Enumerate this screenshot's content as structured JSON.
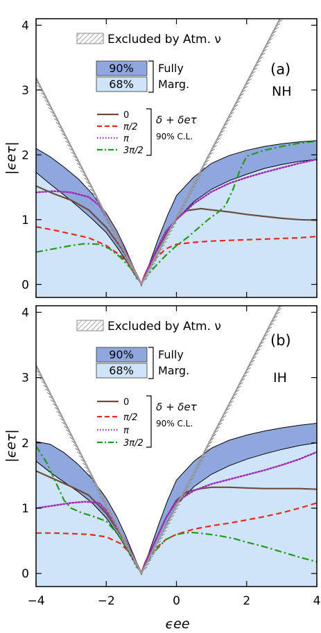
{
  "colors": {
    "band90": "#8fa7dc",
    "band68": "#cfe4f8",
    "excluded": "#9a9a9a",
    "delta_0": "#6b4c3d",
    "delta_pi2": "#e8281e",
    "delta_pi": "#a12cb6",
    "delta_3pi2": "#1f9a1f"
  },
  "shared": {
    "xlabel": "ϵee",
    "ylabel": "|ϵeτ|",
    "x_ticks": [
      "−4",
      "−2",
      "0",
      "2",
      "4"
    ],
    "y_ticks": [
      "0",
      "1",
      "2",
      "3",
      "4"
    ],
    "legend": {
      "excluded": "Excluded by Atm. ν",
      "pct90": "90%",
      "pct68": "68%",
      "fully": "Fully",
      "marg": "Marg.",
      "delta_0": "0",
      "delta_pi2": "π/2",
      "delta_pi": "π",
      "delta_3pi2": "3π/2",
      "delta_title": "δ + δeτ",
      "cl": "90% C.L."
    }
  },
  "chart_data": [
    {
      "type": "line",
      "panel": "(a)",
      "hierarchy": "NH",
      "xlim": [
        -4,
        4
      ],
      "ylim": [
        -0.2,
        4.1
      ],
      "excluded_lines": [
        {
          "name": "left",
          "x": [
            -1,
            -4.2
          ],
          "y": [
            0,
            3.4
          ]
        },
        {
          "name": "right",
          "x": [
            -1,
            2.95
          ],
          "y": [
            0,
            4.1
          ]
        }
      ],
      "band_68": {
        "x": [
          -4,
          -3.6,
          -3.2,
          -2.8,
          -2.4,
          -2.0,
          -1.7,
          -1.45,
          -1.25,
          -1.1,
          -1.0,
          -0.9,
          -0.75,
          -0.5,
          -0.25,
          0,
          0.5,
          1.0,
          1.5,
          2.0,
          2.5,
          3.0,
          3.5,
          4.0
        ],
        "y": [
          1.73,
          1.55,
          1.38,
          1.2,
          1.01,
          0.8,
          0.58,
          0.38,
          0.2,
          0.08,
          0.0,
          0.1,
          0.25,
          0.5,
          0.78,
          1.0,
          1.28,
          1.47,
          1.6,
          1.7,
          1.79,
          1.85,
          1.9,
          1.93
        ]
      },
      "band_90": {
        "x": [
          -4,
          -3.6,
          -3.2,
          -2.8,
          -2.4,
          -2.0,
          -1.7,
          -1.45,
          -1.25,
          -1.1,
          -1.0,
          -0.9,
          -0.75,
          -0.5,
          -0.25,
          0,
          0.5,
          1.0,
          1.5,
          2.0,
          2.5,
          3.0,
          3.5,
          4.0
        ],
        "y": [
          2.1,
          1.97,
          1.81,
          1.63,
          1.4,
          1.1,
          0.83,
          0.55,
          0.3,
          0.12,
          0.0,
          0.13,
          0.35,
          0.73,
          1.07,
          1.37,
          1.66,
          1.87,
          1.99,
          2.07,
          2.13,
          2.17,
          2.2,
          2.22
        ]
      },
      "series": [
        {
          "key": "delta_0",
          "dash": "solid",
          "x": [
            -4,
            -3.5,
            -3.0,
            -2.5,
            -2.0,
            -1.6,
            -1.3,
            -1.1,
            -1.0,
            -0.9,
            -0.6,
            -0.3,
            0,
            0.3,
            0.7,
            1.0,
            1.5,
            2.0,
            2.5,
            3.0,
            3.5,
            4.0
          ],
          "y": [
            1.52,
            1.4,
            1.3,
            1.15,
            0.88,
            0.58,
            0.32,
            0.12,
            0.0,
            0.15,
            0.48,
            0.78,
            1.02,
            1.14,
            1.17,
            1.15,
            1.12,
            1.08,
            1.05,
            1.02,
            1.0,
            0.99
          ]
        },
        {
          "key": "delta_pi2",
          "dash": "dashed",
          "x": [
            -4,
            -3.5,
            -3.0,
            -2.5,
            -2.0,
            -1.6,
            -1.3,
            -1.1,
            -1.0,
            -0.9,
            -0.6,
            -0.3,
            0,
            0.5,
            1.0,
            1.5,
            2.0,
            2.5,
            3.0,
            3.5,
            4.0
          ],
          "y": [
            0.89,
            0.84,
            0.78,
            0.72,
            0.6,
            0.45,
            0.28,
            0.12,
            0.0,
            0.15,
            0.4,
            0.55,
            0.62,
            0.65,
            0.67,
            0.68,
            0.69,
            0.7,
            0.71,
            0.72,
            0.74
          ]
        },
        {
          "key": "delta_pi",
          "dash": "dotted",
          "x": [
            -4,
            -3.5,
            -3.0,
            -2.5,
            -2.2,
            -2.0,
            -1.7,
            -1.4,
            -1.2,
            -1.05,
            -1.0,
            -0.9,
            -0.6,
            -0.3,
            0,
            0.5,
            1.0,
            1.5,
            2.0,
            2.5,
            3.0,
            3.5,
            4.0
          ],
          "y": [
            1.42,
            1.44,
            1.42,
            1.35,
            1.22,
            1.05,
            0.75,
            0.45,
            0.22,
            0.06,
            0.0,
            0.15,
            0.5,
            0.82,
            1.0,
            1.25,
            1.43,
            1.56,
            1.65,
            1.73,
            1.8,
            1.87,
            1.93
          ]
        },
        {
          "key": "delta_3pi2",
          "dash": "dashdot",
          "x": [
            -4,
            -3.5,
            -3.0,
            -2.6,
            -2.2,
            -1.9,
            -1.6,
            -1.3,
            -1.1,
            -1.0,
            -0.9,
            -0.6,
            -0.3,
            0,
            0.3,
            0.6,
            0.9,
            1.2,
            1.4,
            1.6,
            1.8,
            2.0,
            2.5,
            3.0,
            3.5,
            4.0
          ],
          "y": [
            0.5,
            0.55,
            0.6,
            0.63,
            0.62,
            0.55,
            0.42,
            0.25,
            0.1,
            0.0,
            0.1,
            0.28,
            0.45,
            0.6,
            0.72,
            0.86,
            1.0,
            1.12,
            1.22,
            1.45,
            1.75,
            1.98,
            2.07,
            2.13,
            2.18,
            2.21
          ]
        }
      ]
    },
    {
      "type": "line",
      "panel": "(b)",
      "hierarchy": "IH",
      "xlim": [
        -4,
        4
      ],
      "ylim": [
        -0.2,
        4.1
      ],
      "excluded_lines": [
        {
          "name": "left",
          "x": [
            -1,
            -4.2
          ],
          "y": [
            0,
            3.4
          ]
        },
        {
          "name": "right",
          "x": [
            -1,
            2.95
          ],
          "y": [
            0,
            4.1
          ]
        }
      ],
      "band_68": {
        "x": [
          -4,
          -3.6,
          -3.2,
          -2.8,
          -2.4,
          -2.0,
          -1.7,
          -1.45,
          -1.25,
          -1.1,
          -1.0,
          -0.9,
          -0.75,
          -0.5,
          -0.25,
          0,
          0.5,
          1.0,
          1.5,
          2.0,
          2.5,
          3.0,
          3.5,
          4.0
        ],
        "y": [
          1.72,
          1.55,
          1.4,
          1.25,
          1.08,
          0.85,
          0.62,
          0.4,
          0.22,
          0.08,
          0.0,
          0.1,
          0.26,
          0.52,
          0.8,
          1.05,
          1.33,
          1.52,
          1.65,
          1.75,
          1.83,
          1.9,
          1.96,
          2.0
        ]
      },
      "band_90": {
        "x": [
          -4,
          -3.6,
          -3.2,
          -2.8,
          -2.4,
          -2.0,
          -1.7,
          -1.45,
          -1.25,
          -1.1,
          -1.0,
          -0.9,
          -0.75,
          -0.5,
          -0.25,
          0,
          0.5,
          1.0,
          1.5,
          2.0,
          2.5,
          3.0,
          3.5,
          4.0
        ],
        "y": [
          2.02,
          1.98,
          1.85,
          1.67,
          1.45,
          1.15,
          0.87,
          0.58,
          0.32,
          0.13,
          0.0,
          0.14,
          0.37,
          0.76,
          1.12,
          1.43,
          1.72,
          1.92,
          2.04,
          2.12,
          2.18,
          2.23,
          2.27,
          2.3
        ]
      },
      "series": [
        {
          "key": "delta_0",
          "dash": "solid",
          "x": [
            -4,
            -3.5,
            -3.0,
            -2.5,
            -2.0,
            -1.6,
            -1.3,
            -1.1,
            -1.0,
            -0.9,
            -0.6,
            -0.3,
            0,
            0.3,
            0.7,
            1.0,
            1.5,
            2.0,
            2.5,
            3.0,
            3.5,
            4.0
          ],
          "y": [
            1.57,
            1.45,
            1.33,
            1.2,
            0.92,
            0.6,
            0.34,
            0.12,
            0.0,
            0.16,
            0.5,
            0.85,
            1.12,
            1.25,
            1.3,
            1.32,
            1.32,
            1.31,
            1.3,
            1.3,
            1.3,
            1.29
          ]
        },
        {
          "key": "delta_pi2",
          "dash": "dashed",
          "x": [
            -4,
            -3.5,
            -3.0,
            -2.5,
            -2.0,
            -1.6,
            -1.3,
            -1.1,
            -1.0,
            -0.9,
            -0.6,
            -0.3,
            0,
            0.5,
            1.0,
            1.5,
            2.0,
            2.5,
            3.0,
            3.5,
            4.0
          ],
          "y": [
            0.62,
            0.62,
            0.61,
            0.6,
            0.56,
            0.46,
            0.3,
            0.12,
            0.0,
            0.15,
            0.38,
            0.52,
            0.6,
            0.68,
            0.73,
            0.77,
            0.82,
            0.87,
            0.93,
            1.0,
            1.08
          ]
        },
        {
          "key": "delta_pi",
          "dash": "dotted",
          "x": [
            -4,
            -3.5,
            -3.0,
            -2.6,
            -2.2,
            -2.0,
            -1.7,
            -1.4,
            -1.2,
            -1.05,
            -1.0,
            -0.9,
            -0.6,
            -0.3,
            0,
            0.5,
            1.0,
            1.5,
            2.0,
            2.5,
            3.0,
            3.5,
            4.0
          ],
          "y": [
            1.0,
            1.04,
            1.08,
            1.1,
            1.08,
            0.96,
            0.72,
            0.45,
            0.22,
            0.06,
            0.0,
            0.15,
            0.5,
            0.85,
            1.1,
            1.27,
            1.37,
            1.44,
            1.51,
            1.58,
            1.66,
            1.75,
            1.86
          ]
        },
        {
          "key": "delta_3pi2",
          "dash": "dashdot",
          "x": [
            -4,
            -3.7,
            -3.4,
            -3.2,
            -3.0,
            -2.7,
            -2.4,
            -2.0,
            -1.7,
            -1.4,
            -1.2,
            -1.05,
            -1.0,
            -0.9,
            -0.6,
            -0.3,
            0,
            0.4,
            0.8,
            1.2,
            1.6,
            2.0,
            2.5,
            3.0,
            3.5,
            4.0
          ],
          "y": [
            1.95,
            1.7,
            1.35,
            1.12,
            1.0,
            0.93,
            0.88,
            0.8,
            0.62,
            0.38,
            0.18,
            0.05,
            0.0,
            0.12,
            0.35,
            0.52,
            0.6,
            0.63,
            0.61,
            0.58,
            0.54,
            0.48,
            0.41,
            0.33,
            0.25,
            0.18
          ]
        }
      ]
    }
  ]
}
